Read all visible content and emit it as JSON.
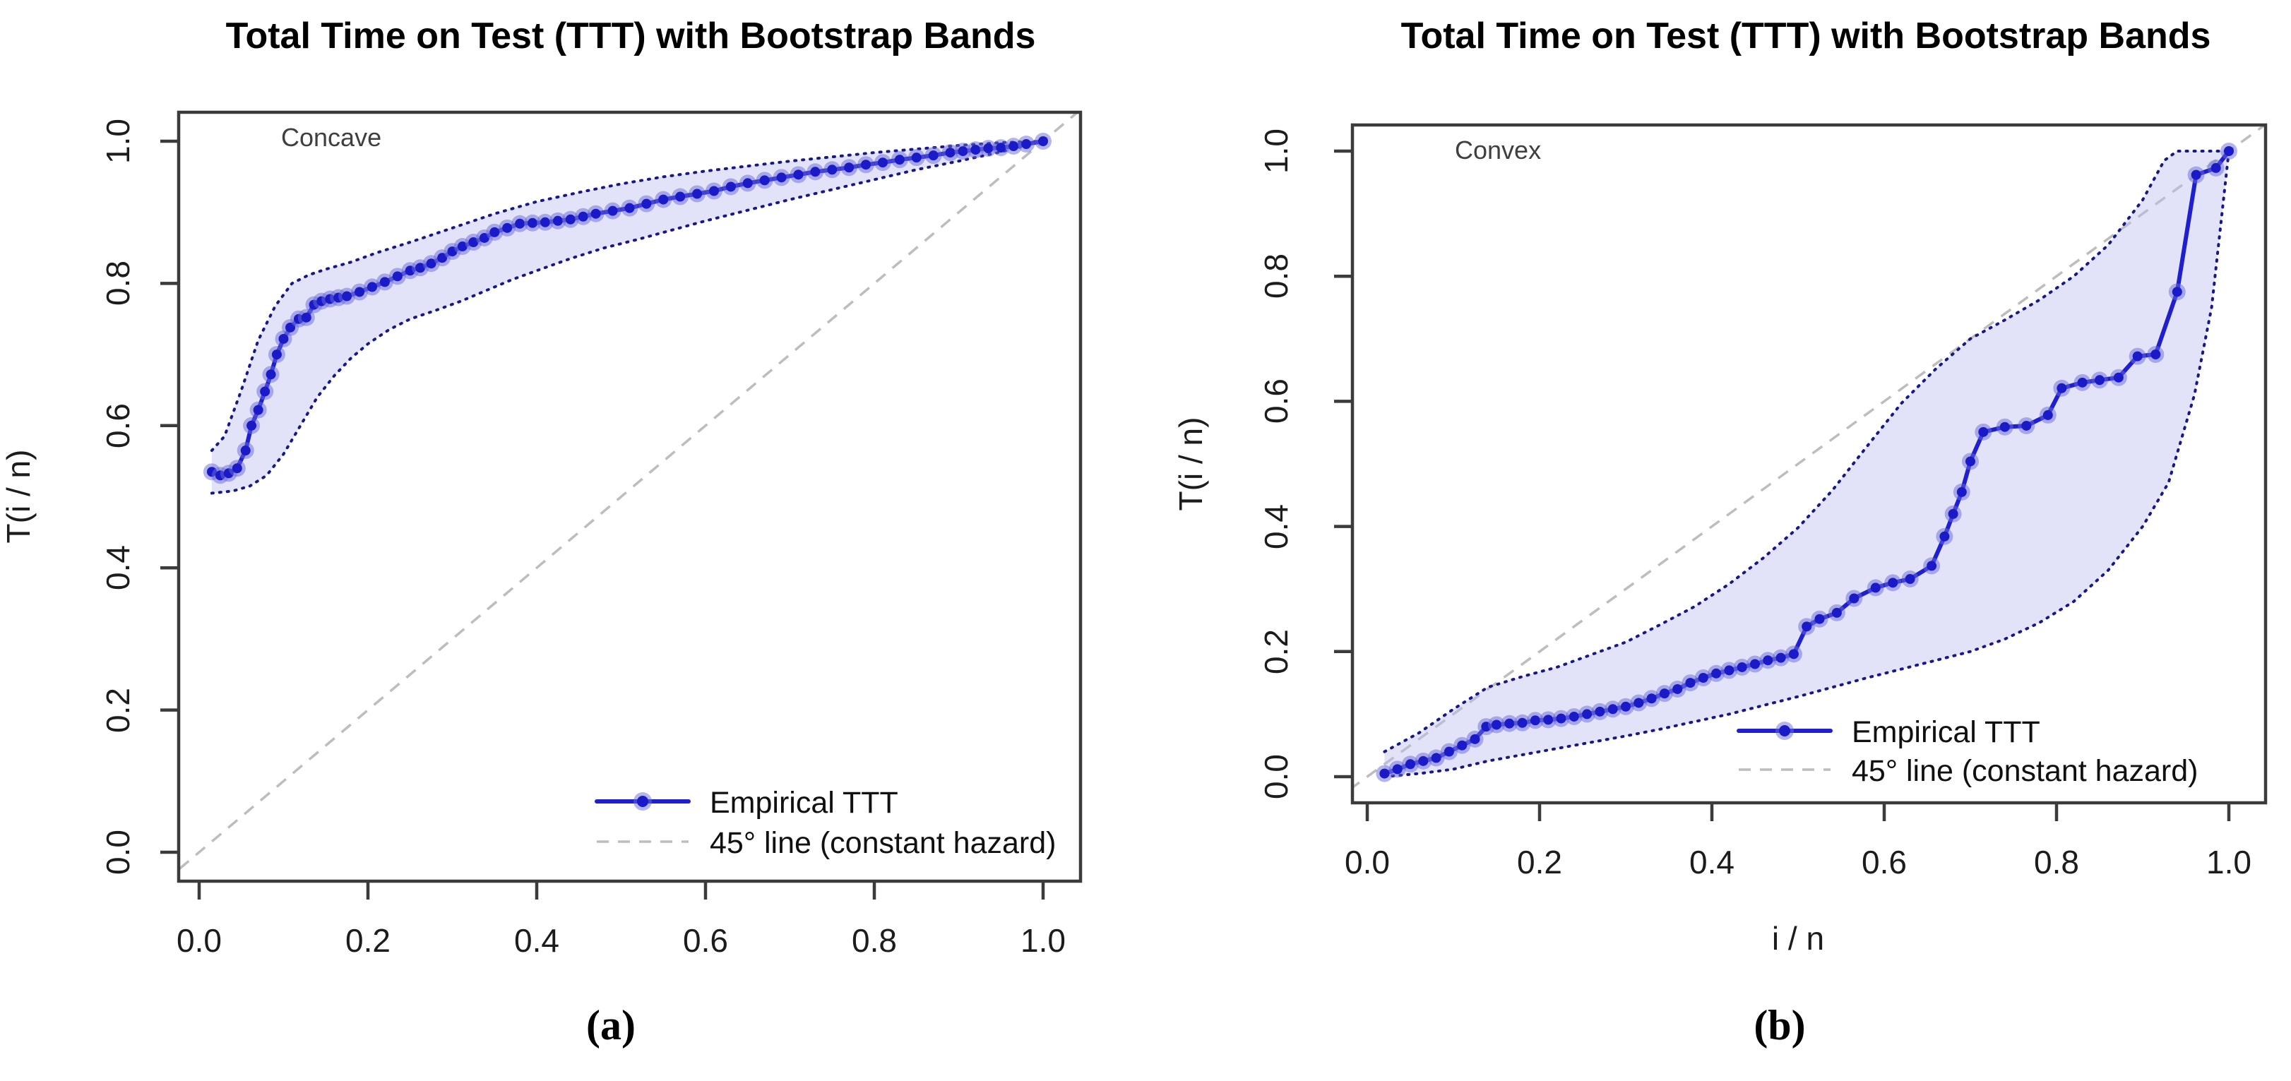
{
  "chart_data": [
    {
      "type": "line",
      "title": "Total Time on Test (TTT) with Bootstrap Bands",
      "region_label": "Concave",
      "caption": "(a)",
      "ylabel": "T(i / n)",
      "xlim": [
        0,
        1
      ],
      "ylim": [
        0,
        1
      ],
      "grid": false,
      "x_tick_values": [
        0,
        0.2,
        0.4,
        0.6,
        0.8,
        1
      ],
      "x_ticks": [
        "0.0",
        "0.2",
        "0.4",
        "0.6",
        "0.8",
        "1.0"
      ],
      "y_tick_values": [
        0,
        0.2,
        0.4,
        0.6,
        0.8,
        1
      ],
      "y_ticks": [
        "0.0",
        "0.2",
        "0.4",
        "0.6",
        "0.8",
        "1.0"
      ],
      "legend_position": "bottom-right",
      "colors": {
        "empirical": "#1f1fd0",
        "marker": "#1a1ac8",
        "band_fill": "#e3e3f8",
        "band_border": "#17178c",
        "diagonal": "#bdbdbd"
      },
      "legend": [
        {
          "label": "Empirical TTT",
          "style": "solid-line-with-dot",
          "color": "#1f1fd0"
        },
        {
          "label": "45° line (constant hazard)",
          "style": "dashed-line",
          "color": "#bdbdbd"
        }
      ],
      "series": [
        {
          "name": "Empirical TTT",
          "role": "empirical",
          "x": [
            0.015,
            0.025,
            0.035,
            0.045,
            0.055,
            0.062,
            0.07,
            0.078,
            0.085,
            0.092,
            0.1,
            0.108,
            0.118,
            0.127,
            0.136,
            0.145,
            0.155,
            0.165,
            0.175,
            0.19,
            0.205,
            0.22,
            0.235,
            0.25,
            0.262,
            0.275,
            0.288,
            0.3,
            0.312,
            0.325,
            0.338,
            0.35,
            0.365,
            0.38,
            0.395,
            0.41,
            0.425,
            0.44,
            0.455,
            0.47,
            0.49,
            0.51,
            0.53,
            0.55,
            0.57,
            0.59,
            0.61,
            0.63,
            0.65,
            0.67,
            0.69,
            0.71,
            0.73,
            0.75,
            0.77,
            0.79,
            0.81,
            0.83,
            0.85,
            0.87,
            0.89,
            0.905,
            0.92,
            0.935,
            0.95,
            0.965,
            0.98,
            1.0
          ],
          "y": [
            0.535,
            0.53,
            0.533,
            0.54,
            0.565,
            0.6,
            0.622,
            0.648,
            0.672,
            0.7,
            0.722,
            0.738,
            0.75,
            0.752,
            0.77,
            0.775,
            0.778,
            0.78,
            0.782,
            0.788,
            0.795,
            0.802,
            0.81,
            0.818,
            0.822,
            0.828,
            0.836,
            0.845,
            0.852,
            0.858,
            0.864,
            0.872,
            0.878,
            0.884,
            0.885,
            0.886,
            0.888,
            0.89,
            0.894,
            0.898,
            0.902,
            0.906,
            0.912,
            0.918,
            0.922,
            0.926,
            0.93,
            0.936,
            0.941,
            0.945,
            0.949,
            0.953,
            0.957,
            0.96,
            0.963,
            0.967,
            0.97,
            0.974,
            0.977,
            0.98,
            0.984,
            0.986,
            0.988,
            0.99,
            0.991,
            0.993,
            0.996,
            1.0
          ]
        },
        {
          "name": "Bootstrap band upper",
          "role": "band_upper",
          "x": [
            0.015,
            0.03,
            0.05,
            0.07,
            0.09,
            0.11,
            0.13,
            0.15,
            0.18,
            0.21,
            0.25,
            0.3,
            0.35,
            0.4,
            0.45,
            0.5,
            0.55,
            0.6,
            0.65,
            0.7,
            0.75,
            0.8,
            0.85,
            0.9,
            0.95,
            1.0
          ],
          "y": [
            0.565,
            0.585,
            0.65,
            0.72,
            0.768,
            0.8,
            0.812,
            0.82,
            0.83,
            0.843,
            0.858,
            0.878,
            0.898,
            0.915,
            0.928,
            0.94,
            0.95,
            0.958,
            0.965,
            0.972,
            0.978,
            0.984,
            0.989,
            0.994,
            0.998,
            1.0
          ]
        },
        {
          "name": "Bootstrap band lower",
          "role": "band_lower",
          "x": [
            0.015,
            0.04,
            0.06,
            0.08,
            0.1,
            0.12,
            0.14,
            0.16,
            0.18,
            0.2,
            0.225,
            0.25,
            0.28,
            0.31,
            0.34,
            0.37,
            0.4,
            0.44,
            0.48,
            0.52,
            0.56,
            0.6,
            0.65,
            0.7,
            0.75,
            0.8,
            0.85,
            0.9,
            0.95,
            1.0
          ],
          "y": [
            0.505,
            0.508,
            0.515,
            0.53,
            0.56,
            0.6,
            0.64,
            0.67,
            0.695,
            0.715,
            0.735,
            0.75,
            0.762,
            0.775,
            0.79,
            0.805,
            0.818,
            0.835,
            0.85,
            0.862,
            0.875,
            0.888,
            0.903,
            0.918,
            0.932,
            0.946,
            0.96,
            0.972,
            0.985,
            1.0
          ]
        },
        {
          "name": "45° line (constant hazard)",
          "role": "diagonal",
          "x": [
            -0.1,
            1.1
          ],
          "y": [
            -0.1,
            1.1
          ]
        }
      ]
    },
    {
      "type": "line",
      "title": "Total Time on Test (TTT) with Bootstrap Bands",
      "region_label": "Convex",
      "caption": "(b)",
      "xlabel": "i / n",
      "ylabel": "T(i / n)",
      "xlim": [
        0,
        1
      ],
      "ylim": [
        0,
        1
      ],
      "grid": false,
      "x_tick_values": [
        0,
        0.2,
        0.4,
        0.6,
        0.8,
        1
      ],
      "x_ticks": [
        "0.0",
        "0.2",
        "0.4",
        "0.6",
        "0.8",
        "1.0"
      ],
      "y_tick_values": [
        0,
        0.2,
        0.4,
        0.6,
        0.8,
        1
      ],
      "y_ticks": [
        "0.0",
        "0.2",
        "0.4",
        "0.6",
        "0.8",
        "1.0"
      ],
      "legend_position": "bottom-right",
      "colors": {
        "empirical": "#1f1fd0",
        "marker": "#1a1ac8",
        "band_fill": "#e3e3f8",
        "band_border": "#17178c",
        "diagonal": "#bdbdbd"
      },
      "legend": [
        {
          "label": "Empirical TTT",
          "style": "solid-line-with-dot",
          "color": "#1f1fd0"
        },
        {
          "label": "45° line (constant hazard)",
          "style": "dashed-line",
          "color": "#bdbdbd"
        }
      ],
      "series": [
        {
          "name": "Empirical TTT",
          "role": "empirical",
          "x": [
            0.02,
            0.035,
            0.05,
            0.065,
            0.08,
            0.095,
            0.11,
            0.125,
            0.138,
            0.15,
            0.165,
            0.18,
            0.195,
            0.21,
            0.225,
            0.24,
            0.255,
            0.27,
            0.285,
            0.3,
            0.315,
            0.33,
            0.345,
            0.36,
            0.375,
            0.39,
            0.405,
            0.42,
            0.435,
            0.45,
            0.465,
            0.48,
            0.495,
            0.51,
            0.525,
            0.545,
            0.565,
            0.59,
            0.61,
            0.63,
            0.655,
            0.67,
            0.68,
            0.69,
            0.7,
            0.715,
            0.74,
            0.765,
            0.79,
            0.806,
            0.83,
            0.85,
            0.872,
            0.894,
            0.915,
            0.94,
            0.962,
            0.985,
            1.0
          ],
          "y": [
            0.005,
            0.012,
            0.02,
            0.025,
            0.03,
            0.04,
            0.05,
            0.06,
            0.08,
            0.083,
            0.085,
            0.086,
            0.09,
            0.091,
            0.093,
            0.096,
            0.1,
            0.104,
            0.108,
            0.112,
            0.118,
            0.125,
            0.133,
            0.14,
            0.15,
            0.158,
            0.165,
            0.17,
            0.175,
            0.18,
            0.186,
            0.19,
            0.196,
            0.24,
            0.252,
            0.262,
            0.285,
            0.302,
            0.31,
            0.316,
            0.337,
            0.384,
            0.42,
            0.455,
            0.504,
            0.551,
            0.559,
            0.561,
            0.578,
            0.621,
            0.63,
            0.634,
            0.638,
            0.672,
            0.675,
            0.775,
            0.962,
            0.973,
            1.0
          ]
        },
        {
          "name": "Bootstrap band upper",
          "role": "band_upper",
          "x": [
            0.02,
            0.06,
            0.1,
            0.14,
            0.18,
            0.22,
            0.26,
            0.3,
            0.34,
            0.38,
            0.42,
            0.46,
            0.5,
            0.54,
            0.58,
            0.62,
            0.66,
            0.7,
            0.74,
            0.78,
            0.82,
            0.86,
            0.9,
            0.925,
            0.94,
            1.0
          ],
          "y": [
            0.04,
            0.07,
            0.108,
            0.143,
            0.16,
            0.175,
            0.195,
            0.215,
            0.243,
            0.272,
            0.308,
            0.35,
            0.398,
            0.458,
            0.528,
            0.597,
            0.652,
            0.7,
            0.73,
            0.762,
            0.8,
            0.85,
            0.922,
            0.985,
            1.0,
            1.0
          ]
        },
        {
          "name": "Bootstrap band lower",
          "role": "band_lower",
          "x": [
            0.02,
            0.06,
            0.1,
            0.14,
            0.18,
            0.22,
            0.26,
            0.3,
            0.34,
            0.38,
            0.42,
            0.46,
            0.5,
            0.54,
            0.58,
            0.62,
            0.66,
            0.7,
            0.74,
            0.78,
            0.82,
            0.86,
            0.9,
            0.93,
            0.96,
            0.98,
            1.0
          ],
          "y": [
            0.0,
            0.005,
            0.012,
            0.025,
            0.035,
            0.045,
            0.055,
            0.065,
            0.076,
            0.088,
            0.1,
            0.114,
            0.128,
            0.143,
            0.158,
            0.172,
            0.186,
            0.2,
            0.22,
            0.246,
            0.28,
            0.33,
            0.4,
            0.47,
            0.61,
            0.75,
            1.0
          ]
        },
        {
          "name": "45° line (constant hazard)",
          "role": "diagonal",
          "x": [
            -0.1,
            1.1
          ],
          "y": [
            -0.1,
            1.1
          ]
        }
      ]
    }
  ]
}
